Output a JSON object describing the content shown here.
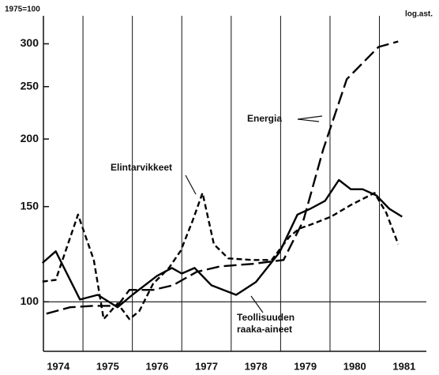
{
  "chart_data": {
    "type": "line",
    "ylabel": "1975=100",
    "scale_note": "log.ast.",
    "log_y": true,
    "ylim": [
      81,
      338
    ],
    "yticks": [
      100,
      150,
      200,
      250,
      300
    ],
    "hline": 100,
    "xlim": [
      1974.2,
      1981.95
    ],
    "xticks": [
      {
        "value": 1974.5,
        "label": "1974"
      },
      {
        "value": 1975.5,
        "label": "1975"
      },
      {
        "value": 1976.5,
        "label": "1976"
      },
      {
        "value": 1977.5,
        "label": "1977"
      },
      {
        "value": 1978.5,
        "label": "1978"
      },
      {
        "value": 1979.5,
        "label": "1979"
      },
      {
        "value": 1980.5,
        "label": "1980"
      },
      {
        "value": 1981.5,
        "label": "1981"
      }
    ],
    "xgrid": [
      1975,
      1976,
      1977,
      1978,
      1979,
      1980,
      1981
    ],
    "annotations": [
      "Energia",
      "Elintarvikkeet",
      "Teollisuuden",
      "raaka-aineet"
    ],
    "series": [
      {
        "color": "#000000",
        "dash": "solid",
        "x": [
          1974.18,
          1974.45,
          1974.94,
          1975.3,
          1975.7,
          1976.0,
          1976.5,
          1976.8,
          1977.0,
          1977.26,
          1977.6,
          1978.1,
          1978.5,
          1978.98,
          1979.34,
          1979.6,
          1979.9,
          1980.18,
          1980.42,
          1980.66,
          1980.94,
          1981.2,
          1981.46
        ],
        "values": [
          118,
          124,
          101,
          103,
          97.7,
          103,
          111.7,
          115.5,
          112.8,
          115.5,
          107.3,
          103,
          108.8,
          123.5,
          145,
          148.6,
          153.7,
          168,
          161.5,
          161.5,
          157.3,
          148.6,
          143.7
        ]
      },
      {
        "color": "#000000",
        "dash": "short",
        "x": [
          1974.18,
          1974.45,
          1974.9,
          1975.22,
          1975.42,
          1975.7,
          1975.94,
          1976.14,
          1976.42,
          1976.74,
          1976.98,
          1977.22,
          1977.42,
          1977.65,
          1977.94,
          1978.42,
          1978.82,
          1979.18,
          1979.38,
          1979.62,
          1980.02,
          1980.42,
          1980.9,
          1981.14,
          1981.38
        ],
        "values": [
          109,
          109.8,
          145,
          119.5,
          92.9,
          99.3,
          92.9,
          96.1,
          108,
          115.5,
          124.4,
          141.3,
          159,
          127.8,
          120.3,
          119.5,
          119.5,
          132,
          136.6,
          139,
          143.7,
          151,
          159,
          146,
          127.8
        ]
      },
      {
        "color": "#000000",
        "dash": "long",
        "x": [
          1974.26,
          1974.74,
          1975.22,
          1975.7,
          1975.94,
          1976.42,
          1976.82,
          1977.3,
          1977.78,
          1978.42,
          1979.06,
          1979.46,
          1979.86,
          1980.34,
          1980.98,
          1981.38
        ],
        "values": [
          95.1,
          97.7,
          98.3,
          98.3,
          105.2,
          105.2,
          107.3,
          113.6,
          116.3,
          117.5,
          119.5,
          141.3,
          191,
          258,
          296,
          303
        ]
      }
    ]
  }
}
